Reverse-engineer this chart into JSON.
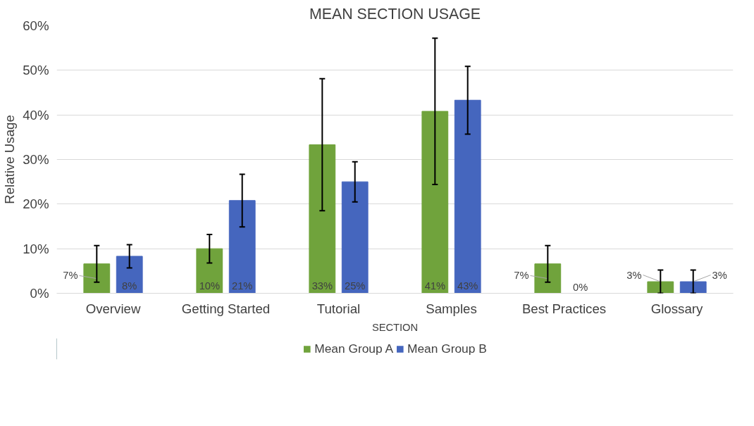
{
  "chart_data": {
    "type": "bar",
    "title": "MEAN SECTION USAGE",
    "xlabel": "SECTION",
    "ylabel": "Relative Usage",
    "categories": [
      "Overview",
      "Getting Started",
      "Tutorial",
      "Samples",
      "Best Practices",
      "Glossary"
    ],
    "series": [
      {
        "name": "Mean Group A",
        "color": "#70a33c",
        "values": [
          6.6,
          10.0,
          33.3,
          40.8,
          6.6,
          2.6
        ],
        "errors": [
          4.1,
          3.2,
          14.8,
          16.4,
          4.1,
          2.6
        ],
        "value_labels": [
          "7%",
          "10%",
          "33%",
          "41%",
          "7%",
          "3%"
        ]
      },
      {
        "name": "Mean Group B",
        "color": "#4566be",
        "values": [
          8.3,
          20.8,
          25.0,
          43.3,
          0,
          2.6
        ],
        "errors": [
          2.6,
          5.9,
          4.5,
          7.6,
          null,
          2.6
        ],
        "value_labels": [
          "8%",
          "21%",
          "25%",
          "43%",
          "0%",
          "3%"
        ]
      }
    ],
    "ylim": [
      0,
      60
    ],
    "yticks": [
      {
        "value": 0,
        "label": "0%"
      },
      {
        "value": 10,
        "label": "10%"
      },
      {
        "value": 20,
        "label": "20%"
      },
      {
        "value": 30,
        "label": "30%"
      },
      {
        "value": 40,
        "label": "40%"
      },
      {
        "value": 50,
        "label": "50%"
      },
      {
        "value": 60,
        "label": "60%"
      }
    ],
    "grid": "y",
    "legend": "bottom"
  }
}
